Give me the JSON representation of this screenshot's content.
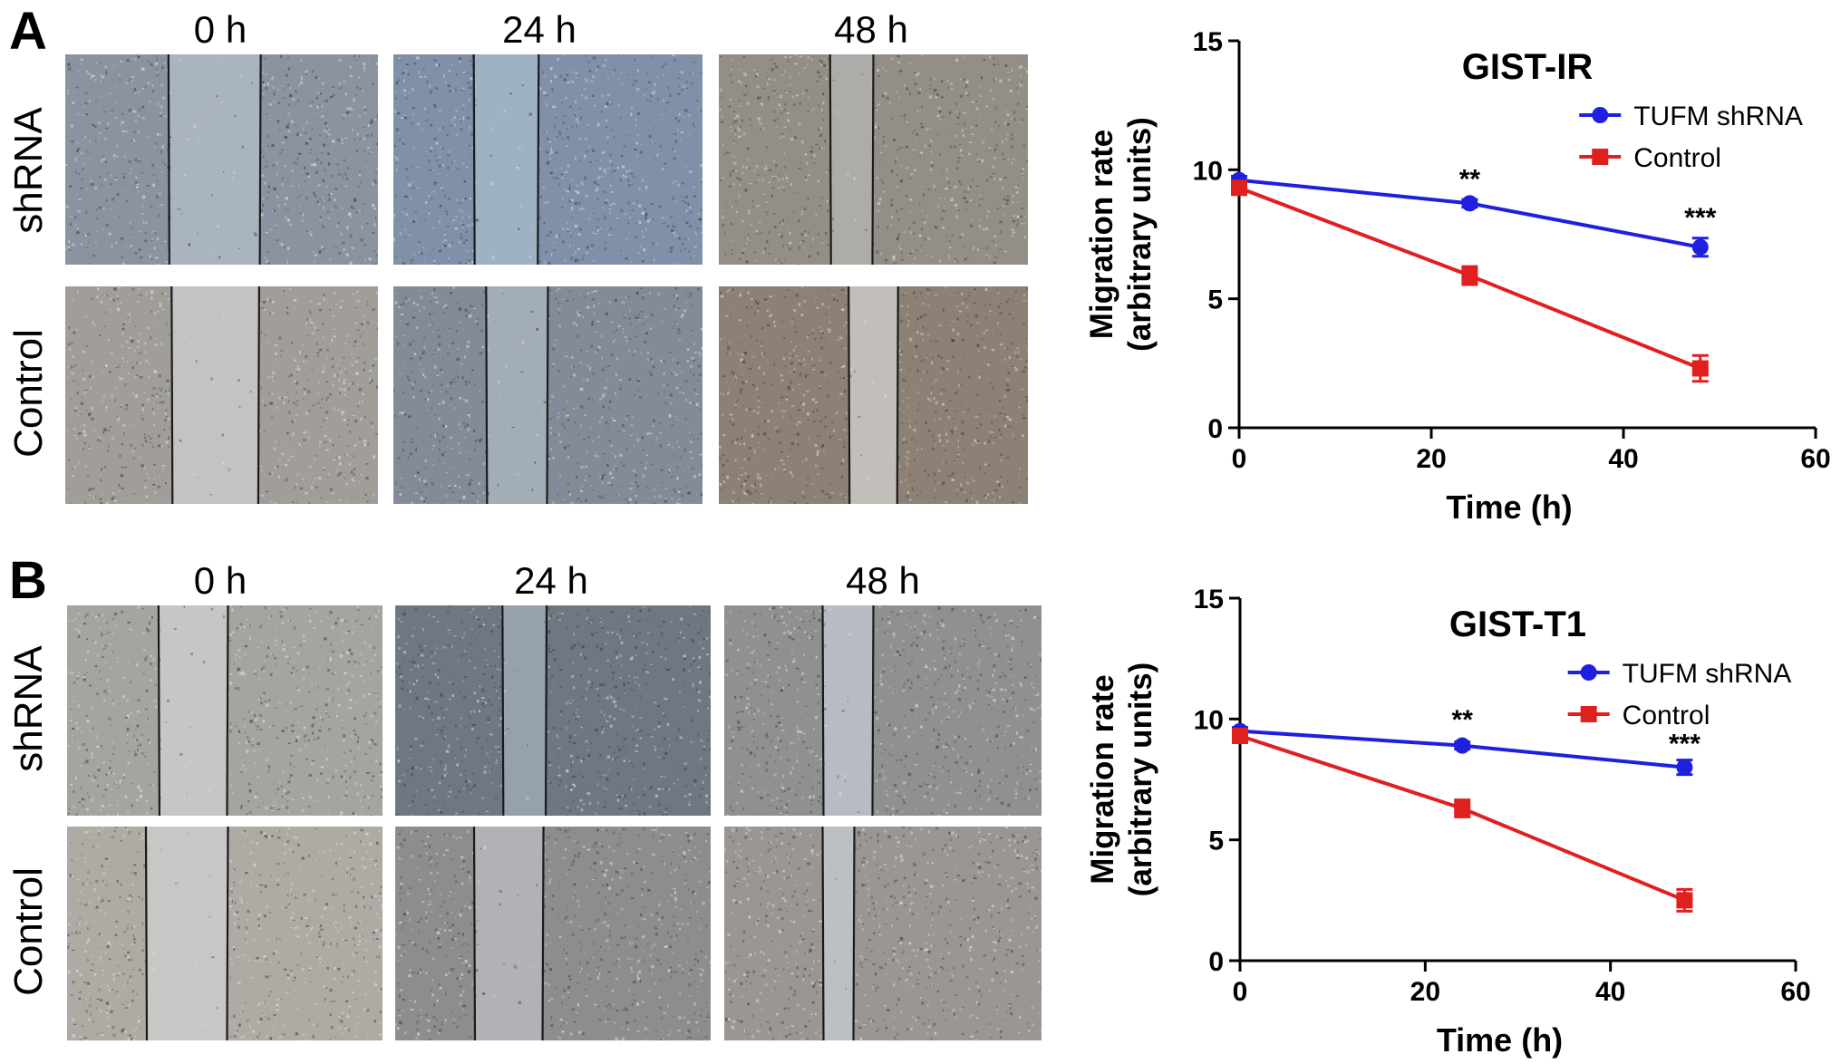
{
  "panels": [
    {
      "letter": "A",
      "time_labels": [
        "0 h",
        "24 h",
        "48 h"
      ],
      "row_labels": [
        "shRNA",
        "Control"
      ]
    },
    {
      "letter": "B",
      "time_labels": [
        "0 h",
        "24 h",
        "48 h"
      ],
      "row_labels": [
        "shRNA",
        "Control"
      ]
    }
  ],
  "chart_data": [
    {
      "type": "line",
      "title": "GIST-IR",
      "xlabel": "Time (h)",
      "ylabel_lines": [
        "Migration rate",
        "(arbitrary units)"
      ],
      "xlim": [
        0,
        60
      ],
      "ylim": [
        0,
        15
      ],
      "xticks": [
        "0",
        "20",
        "40",
        "60"
      ],
      "yticks": [
        "0",
        "5",
        "10",
        "15"
      ],
      "x": [
        0,
        24,
        48
      ],
      "grid": false,
      "legend_position": "top-right",
      "series": [
        {
          "name": "TUFM shRNA",
          "color": "#1f1fe0",
          "marker": "circle",
          "values": [
            9.6,
            8.7,
            7.0
          ],
          "errors": [
            0.15,
            0.15,
            0.35
          ]
        },
        {
          "name": "Control",
          "color": "#e01f1f",
          "marker": "square",
          "values": [
            9.3,
            5.9,
            2.3
          ],
          "errors": [
            0.15,
            0.35,
            0.5
          ]
        }
      ],
      "annotations": [
        {
          "text": "**",
          "x": 24,
          "y": 9.3
        },
        {
          "text": "***",
          "x": 48,
          "y": 7.8
        }
      ]
    },
    {
      "type": "line",
      "title": "GIST-T1",
      "xlabel": "Time (h)",
      "ylabel_lines": [
        "Migration rate",
        "(arbitrary units)"
      ],
      "xlim": [
        0,
        60
      ],
      "ylim": [
        0,
        15
      ],
      "xticks": [
        "0",
        "20",
        "40",
        "60"
      ],
      "yticks": [
        "0",
        "5",
        "10",
        "15"
      ],
      "x": [
        0,
        24,
        48
      ],
      "grid": false,
      "legend_position": "top-right",
      "series": [
        {
          "name": "TUFM shRNA",
          "color": "#1f1fe0",
          "marker": "circle",
          "values": [
            9.5,
            8.9,
            8.0
          ],
          "errors": [
            0.15,
            0.15,
            0.3
          ]
        },
        {
          "name": "Control",
          "color": "#e01f1f",
          "marker": "square",
          "values": [
            9.3,
            6.3,
            2.5
          ],
          "errors": [
            0.15,
            0.35,
            0.45
          ]
        }
      ],
      "annotations": [
        {
          "text": "**",
          "x": 24,
          "y": 9.6
        },
        {
          "text": "***",
          "x": 48,
          "y": 8.6
        }
      ]
    }
  ]
}
